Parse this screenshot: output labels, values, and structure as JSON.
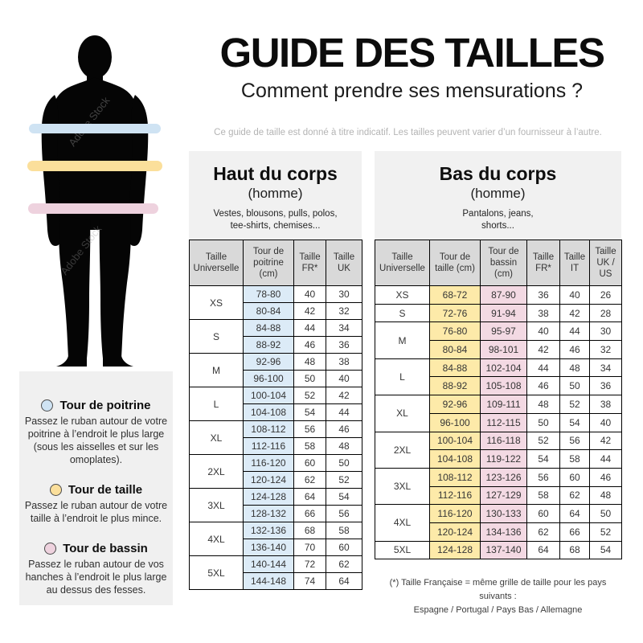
{
  "page": {
    "title": "GUIDE DES TAILLES",
    "subtitle": "Comment prendre ses mensurations ?",
    "disclaimer": "Ce guide de taille est donné à titre indicatif. Les tailles peuvent varier d’un fournisseur à l’autre.",
    "watermark": "Adobe Stock"
  },
  "legend": {
    "items": [
      {
        "label": "Tour de poitrine",
        "color": "#cfe3f3",
        "description": "Passez le ruban autour de votre poitrine à l’endroit le plus large (sous les aisselles et sur les omoplates)."
      },
      {
        "label": "Tour de taille",
        "color": "#fbdf9b",
        "description": "Passez le ruban autour de votre taille à l’endroit le plus mince."
      },
      {
        "label": "Tour de bassin",
        "color": "#eed2de",
        "description": "Passez le ruban autour de vos hanches à l’endroit le plus large au dessus des fesses."
      }
    ]
  },
  "upper_table": {
    "title": "Haut du corps",
    "subtitle": "(homme)",
    "description_lines": [
      "Vestes, blousons, pulls, polos,",
      "tee-shirts, chemises..."
    ],
    "columns": [
      "Taille Universelle",
      "Tour de poitrine (cm)",
      "Taille FR*",
      "Taille UK"
    ],
    "cell_colors": [
      "#dcebf7",
      null,
      null
    ],
    "groups": [
      {
        "size": "XS",
        "rows": [
          [
            "78-80",
            "40",
            "30"
          ],
          [
            "80-84",
            "42",
            "32"
          ]
        ]
      },
      {
        "size": "S",
        "rows": [
          [
            "84-88",
            "44",
            "34"
          ],
          [
            "88-92",
            "46",
            "36"
          ]
        ]
      },
      {
        "size": "M",
        "rows": [
          [
            "92-96",
            "48",
            "38"
          ],
          [
            "96-100",
            "50",
            "40"
          ]
        ]
      },
      {
        "size": "L",
        "rows": [
          [
            "100-104",
            "52",
            "42"
          ],
          [
            "104-108",
            "54",
            "44"
          ]
        ]
      },
      {
        "size": "XL",
        "rows": [
          [
            "108-112",
            "56",
            "46"
          ],
          [
            "112-116",
            "58",
            "48"
          ]
        ]
      },
      {
        "size": "2XL",
        "rows": [
          [
            "116-120",
            "60",
            "50"
          ],
          [
            "120-124",
            "62",
            "52"
          ]
        ]
      },
      {
        "size": "3XL",
        "rows": [
          [
            "124-128",
            "64",
            "54"
          ],
          [
            "128-132",
            "66",
            "56"
          ]
        ]
      },
      {
        "size": "4XL",
        "rows": [
          [
            "132-136",
            "68",
            "58"
          ],
          [
            "136-140",
            "70",
            "60"
          ]
        ]
      },
      {
        "size": "5XL",
        "rows": [
          [
            "140-144",
            "72",
            "62"
          ],
          [
            "144-148",
            "74",
            "64"
          ]
        ]
      }
    ]
  },
  "lower_table": {
    "title": "Bas du corps",
    "subtitle": "(homme)",
    "description_lines": [
      "Pantalons, jeans,",
      "shorts..."
    ],
    "columns": [
      "Taille Universelle",
      "Tour de taille (cm)",
      "Tour de bassin (cm)",
      "Taille FR*",
      "Taille IT",
      "Taille UK / US"
    ],
    "cell_colors": [
      "#fdeaa9",
      "#f3d9e3",
      null,
      null,
      null
    ],
    "groups": [
      {
        "size": "XS",
        "rows": [
          [
            "68-72",
            "87-90",
            "36",
            "40",
            "26"
          ]
        ]
      },
      {
        "size": "S",
        "rows": [
          [
            "72-76",
            "91-94",
            "38",
            "42",
            "28"
          ]
        ]
      },
      {
        "size": "M",
        "rows": [
          [
            "76-80",
            "95-97",
            "40",
            "44",
            "30"
          ],
          [
            "80-84",
            "98-101",
            "42",
            "46",
            "32"
          ]
        ]
      },
      {
        "size": "L",
        "rows": [
          [
            "84-88",
            "102-104",
            "44",
            "48",
            "34"
          ],
          [
            "88-92",
            "105-108",
            "46",
            "50",
            "36"
          ]
        ]
      },
      {
        "size": "XL",
        "rows": [
          [
            "92-96",
            "109-111",
            "48",
            "52",
            "38"
          ],
          [
            "96-100",
            "112-115",
            "50",
            "54",
            "40"
          ]
        ]
      },
      {
        "size": "2XL",
        "rows": [
          [
            "100-104",
            "116-118",
            "52",
            "56",
            "42"
          ],
          [
            "104-108",
            "119-122",
            "54",
            "58",
            "44"
          ]
        ]
      },
      {
        "size": "3XL",
        "rows": [
          [
            "108-112",
            "123-126",
            "56",
            "60",
            "46"
          ],
          [
            "112-116",
            "127-129",
            "58",
            "62",
            "48"
          ]
        ]
      },
      {
        "size": "4XL",
        "rows": [
          [
            "116-120",
            "130-133",
            "60",
            "64",
            "50"
          ],
          [
            "120-124",
            "134-136",
            "62",
            "66",
            "52"
          ]
        ]
      },
      {
        "size": "5XL",
        "rows": [
          [
            "124-128",
            "137-140",
            "64",
            "68",
            "54"
          ]
        ]
      }
    ]
  },
  "footnote": {
    "lines": [
      "(*) Taille Française = même grille de taille pour les pays suivants :",
      "Espagne / Portugal / Pays Bas / Allemagne"
    ]
  }
}
